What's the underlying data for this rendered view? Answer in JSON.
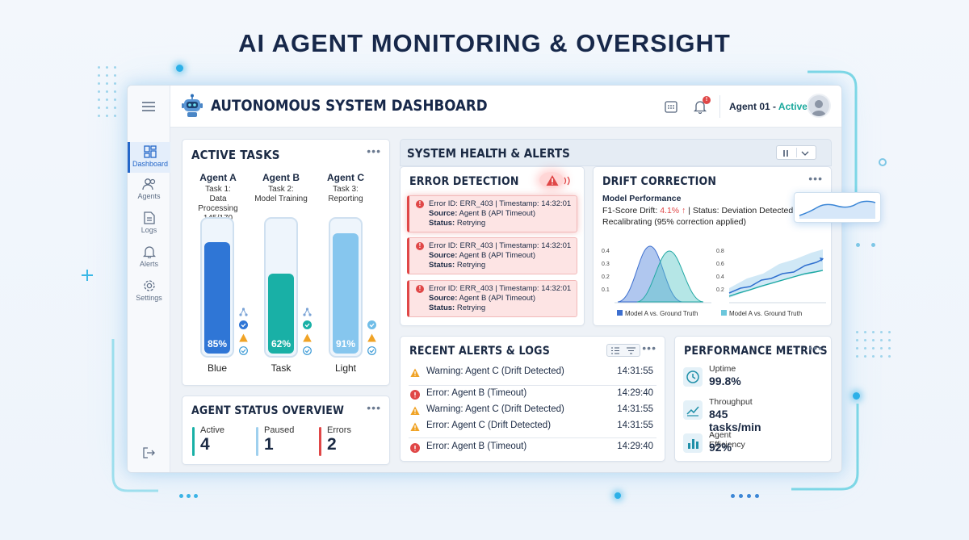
{
  "page_title": "AI AGENT MONITORING & OVERSIGHT",
  "header": {
    "app_title": "AUTONOMOUS SYSTEM DASHBOARD",
    "agent_label": "Agent 01 - ",
    "agent_status": "Active",
    "notification_badge": "!"
  },
  "sidebar": {
    "items": [
      {
        "label": "Dashboard",
        "icon": "dashboard-icon",
        "active": true
      },
      {
        "label": "Agents",
        "icon": "agents-icon"
      },
      {
        "label": "Logs",
        "icon": "logs-icon"
      },
      {
        "label": "Alerts",
        "icon": "bell-icon"
      },
      {
        "label": "Settings",
        "icon": "gear-icon"
      }
    ]
  },
  "active_tasks": {
    "title": "ACTIVE TASKS",
    "agents": [
      {
        "name": "Agent A",
        "task_line1": "Task 1:",
        "task_line2": "Data Processing",
        "task_line3": "145/170",
        "percent": "85%",
        "level": 0.85,
        "label": "Blue",
        "color": "#2f76d6"
      },
      {
        "name": "Agent B",
        "task_line1": "Task 2:",
        "task_line2": "Model Training",
        "task_line3": "",
        "percent": "62%",
        "level": 0.62,
        "label": "Task",
        "color": "#19b0a6"
      },
      {
        "name": "Agent C",
        "task_line1": "Task 3:",
        "task_line2": "Reporting",
        "task_line3": "",
        "percent": "91%",
        "level": 0.91,
        "label": "Light",
        "color": "#86c6ee"
      }
    ]
  },
  "agent_status": {
    "title": "AGENT STATUS OVERVIEW",
    "stats": [
      {
        "label": "Active",
        "value": "4",
        "color": "#19b0a6"
      },
      {
        "label": "Paused",
        "value": "1",
        "color": "#9fd0ee"
      },
      {
        "label": "Errors",
        "value": "2",
        "color": "#e04747"
      }
    ]
  },
  "system_health": {
    "title": "SYSTEM HEALTH & ALERTS"
  },
  "error_detection": {
    "title": "ERROR DETECTION",
    "errors": [
      {
        "line1": "Error ID: ERR_403 | Timestamp: 14:32:01",
        "source_label": "Source:",
        "source": " Agent B (API Timeout)",
        "status_label": "Status:",
        "status": " Retrying"
      },
      {
        "line1": "Error ID: ERR_403 | Timestamp: 14:32:01",
        "source_label": "Source:",
        "source": " Agent B (API Timeout)",
        "status_label": "Status:",
        "status": " Retrying"
      },
      {
        "line1": "Error ID: ERR_403 | Timestamp: 14:32:01",
        "source_label": "Source:",
        "source": " Agent B (API Timeout)",
        "status_label": "Status:",
        "status": " Retrying"
      }
    ]
  },
  "drift": {
    "title": "DRIFT CORRECTION",
    "subtitle": "Model Performance",
    "line_a": "F1-Score Drift: ",
    "drift_value": "4.1% ↑",
    "line_b": " | Status: Deviation Detected,",
    "line_c": "Recalibrating (95% correction applied)",
    "left_ticks": [
      "0.4",
      "0.3",
      "0.2",
      "0.1"
    ],
    "right_ticks": [
      "0.8",
      "0.6",
      "0.4",
      "0.2"
    ],
    "legend_a": "Model A vs. Ground Truth",
    "legend_b": "Model A vs. Ground Truth"
  },
  "recent_logs": {
    "title": "RECENT ALERTS & LOGS",
    "rows": [
      {
        "type": "warning",
        "text": "Warning: Agent C (Drift Detected)",
        "time": "14:31:55"
      },
      {
        "type": "error",
        "text": "Error: Agent B (Timeout)",
        "time": "14:29:40"
      },
      {
        "type": "warning",
        "text": "Warning: Agent C (Drift Detected)",
        "time": "14:31:55"
      },
      {
        "type": "warning",
        "text": "Error: Agent C (Drift Detected)",
        "time": "14:31:55"
      },
      {
        "type": "error",
        "text": "Error: Agent B (Timeout)",
        "time": "14:29:40"
      }
    ]
  },
  "performance": {
    "title": "PERFORMANCE METRICS",
    "metrics": [
      {
        "label": "Uptime",
        "value": "99.8%",
        "icon": "clock-icon"
      },
      {
        "label": "Throughput",
        "value": "845 tasks/min",
        "icon": "trend-icon"
      },
      {
        "label": "Agent Efficiency",
        "value": "92%",
        "icon": "bar-chart-icon"
      }
    ]
  },
  "colors": {
    "accent": "#2467c9",
    "error": "#e04747",
    "warning": "#f0a326",
    "teal": "#19b0a6"
  }
}
